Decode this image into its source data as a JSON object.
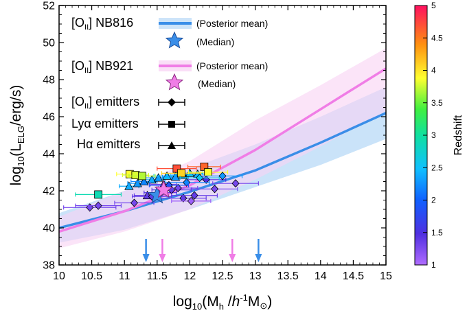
{
  "chart_data": {
    "type": "scatter",
    "xlabel": "log10(Mh /h-1M⊙)",
    "ylabel": "log10(LELG/erg/s)",
    "xlim": [
      10,
      15
    ],
    "ylim": [
      38,
      52
    ],
    "xticks": [
      "10",
      "10.5",
      "11",
      "11.5",
      "12",
      "12.5",
      "13",
      "13.5",
      "14",
      "14.5",
      "15"
    ],
    "yticks": [
      "38",
      "40",
      "42",
      "44",
      "46",
      "48",
      "50",
      "52"
    ],
    "grid": false,
    "legend_position": "top-left",
    "colorbar": {
      "label": "Redshift",
      "range": [
        1,
        5
      ],
      "ticks": [
        "1",
        "1.5",
        "2",
        "2.5",
        "3",
        "3.5",
        "4",
        "4.5",
        "5"
      ],
      "colormap": "rainbow"
    },
    "legend": {
      "nb816_label": "[OII] NB816",
      "nb921_label": "[OII] NB921",
      "posterior_mean": "(Posterior mean)",
      "median": "(Median)",
      "oii_emitters": "[OII] emitters",
      "lya_emitters": "Lyα emitters",
      "ha_emitters": "Hα emitters"
    },
    "series": [
      {
        "name": "[OII] NB816 (Posterior mean)",
        "color": "#3a8ee8",
        "band_color": "#b8d9f7",
        "x": [
          10.0,
          11.0,
          12.0,
          13.0,
          14.0,
          15.0
        ],
        "y": [
          40.0,
          40.9,
          41.95,
          43.1,
          44.6,
          46.2
        ],
        "lower": [
          39.2,
          39.9,
          41.0,
          42.2,
          43.4,
          44.8
        ],
        "upper": [
          40.8,
          42.0,
          43.2,
          44.5,
          46.0,
          47.6
        ]
      },
      {
        "name": "[OII] NB921 (Posterior mean)",
        "color": "#f07de6",
        "band_color": "#f8d2f4",
        "x": [
          10.0,
          11.0,
          12.0,
          13.0,
          14.0,
          15.0
        ],
        "y": [
          39.8,
          40.9,
          42.3,
          44.2,
          46.4,
          48.6
        ],
        "lower": [
          38.9,
          39.8,
          41.0,
          42.6,
          44.4,
          46.3
        ],
        "upper": [
          40.6,
          42.0,
          43.6,
          45.8,
          47.7,
          49.7
        ]
      }
    ],
    "medians": [
      {
        "name": "NB816 median",
        "x": 11.5,
        "y": 41.75,
        "color": "#3a8ee8"
      },
      {
        "name": "NB921 median",
        "x": 11.6,
        "y": 42.05,
        "color": "#f07de6"
      }
    ],
    "arrows": [
      {
        "x": 11.33,
        "color": "#3a8ee8"
      },
      {
        "x": 13.05,
        "color": "#3a8ee8"
      },
      {
        "x": 11.58,
        "color": "#f07de6"
      },
      {
        "x": 12.65,
        "color": "#f07de6"
      }
    ],
    "oii_emitters": [
      {
        "x": 10.47,
        "y": 41.1,
        "z": 1.3,
        "xerr": 0.4
      },
      {
        "x": 10.6,
        "y": 41.2,
        "z": 1.3,
        "xerr": 0.35
      },
      {
        "x": 11.15,
        "y": 41.35,
        "z": 1.3,
        "xerr": 0.3
      },
      {
        "x": 11.42,
        "y": 41.7,
        "z": 1.4,
        "xerr": 0.3
      },
      {
        "x": 11.55,
        "y": 41.9,
        "z": 1.5,
        "xerr": 0.25
      },
      {
        "x": 11.72,
        "y": 42.05,
        "z": 1.4,
        "xerr": 0.3
      },
      {
        "x": 11.82,
        "y": 42.15,
        "z": 1.3,
        "xerr": 0.3
      },
      {
        "x": 11.9,
        "y": 41.6,
        "z": 1.4,
        "xerr": 0.35
      },
      {
        "x": 12.02,
        "y": 41.45,
        "z": 1.1,
        "xerr": 0.3
      },
      {
        "x": 12.07,
        "y": 41.75,
        "z": 1.4,
        "xerr": 0.35
      },
      {
        "x": 12.25,
        "y": 42.6,
        "z": 1.5,
        "xerr": 0.3
      },
      {
        "x": 12.38,
        "y": 42.1,
        "z": 1.3,
        "xerr": 0.35
      },
      {
        "x": 12.7,
        "y": 42.4,
        "z": 1.3,
        "xerr": 0.35
      },
      {
        "x": 11.95,
        "y": 42.45,
        "z": 2.2,
        "xerr": 0.35
      },
      {
        "x": 12.15,
        "y": 42.7,
        "z": 2.6,
        "xerr": 0.3
      },
      {
        "x": 12.5,
        "y": 42.8,
        "z": 2.3,
        "xerr": 0.3
      },
      {
        "x": 11.68,
        "y": 42.3,
        "z": 1.9,
        "xerr": 0.3
      }
    ],
    "lya_emitters": [
      {
        "x": 10.6,
        "y": 41.8,
        "z": 2.9,
        "xerr": 0.35
      },
      {
        "x": 11.08,
        "y": 42.9,
        "z": 3.9,
        "xerr": 0.2
      },
      {
        "x": 11.17,
        "y": 42.85,
        "z": 3.8,
        "xerr": 0.2
      },
      {
        "x": 11.27,
        "y": 42.8,
        "z": 3.7,
        "xerr": 0.2
      },
      {
        "x": 11.8,
        "y": 43.2,
        "z": 4.7,
        "xerr": 0.3
      },
      {
        "x": 11.87,
        "y": 42.95,
        "z": 4.1,
        "xerr": 0.3
      },
      {
        "x": 12.22,
        "y": 43.3,
        "z": 4.6,
        "xerr": 0.25
      },
      {
        "x": 12.28,
        "y": 43.0,
        "z": 3.9,
        "xerr": 0.3
      }
    ],
    "ha_emitters": [
      {
        "x": 11.07,
        "y": 42.25,
        "z": 2.4,
        "xerr": 0.15
      },
      {
        "x": 11.2,
        "y": 42.4,
        "z": 2.3,
        "xerr": 0.15
      },
      {
        "x": 11.3,
        "y": 42.5,
        "z": 2.2,
        "xerr": 0.2
      },
      {
        "x": 11.42,
        "y": 42.6,
        "z": 2.4,
        "xerr": 0.2
      },
      {
        "x": 11.52,
        "y": 42.7,
        "z": 2.3,
        "xerr": 0.2
      },
      {
        "x": 11.65,
        "y": 42.8,
        "z": 2.5,
        "xerr": 0.2
      },
      {
        "x": 11.78,
        "y": 42.75,
        "z": 2.3,
        "xerr": 0.2
      },
      {
        "x": 11.9,
        "y": 42.85,
        "z": 2.4,
        "xerr": 0.2
      },
      {
        "x": 12.0,
        "y": 42.95,
        "z": 2.6,
        "xerr": 0.2
      },
      {
        "x": 12.12,
        "y": 42.9,
        "z": 2.4,
        "xerr": 0.2
      },
      {
        "x": 11.6,
        "y": 42.35,
        "z": 1.3,
        "xerr": 0.2
      },
      {
        "x": 11.35,
        "y": 41.75,
        "z": 1.4,
        "xerr": 0.2
      }
    ]
  }
}
